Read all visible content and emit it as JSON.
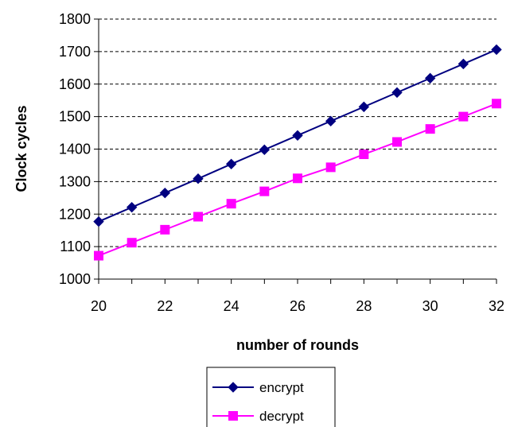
{
  "chart_data": {
    "type": "line",
    "title": "",
    "xlabel": "number of rounds",
    "ylabel": "Clock cycles",
    "x": [
      20,
      21,
      22,
      23,
      24,
      25,
      26,
      27,
      28,
      29,
      30,
      31,
      32
    ],
    "xticks": [
      20,
      22,
      24,
      26,
      28,
      30,
      32
    ],
    "xlim": [
      20,
      32
    ],
    "yticks": [
      1000,
      1100,
      1200,
      1300,
      1400,
      1500,
      1600,
      1700,
      1800
    ],
    "ylim": [
      1000,
      1800
    ],
    "grid": "horizontal dashed",
    "legend_position": "bottom",
    "series": [
      {
        "name": "encrypt",
        "color": "#000080",
        "marker": "diamond",
        "values": [
          1177,
          1221,
          1265,
          1309,
          1354,
          1398,
          1442,
          1486,
          1530,
          1574,
          1618,
          1662,
          1706
        ]
      },
      {
        "name": "decrypt",
        "color": "#FF00FF",
        "marker": "square",
        "values": [
          1072,
          1112,
          1152,
          1192,
          1232,
          1270,
          1310,
          1344,
          1384,
          1422,
          1462,
          1500,
          1540
        ]
      }
    ]
  }
}
